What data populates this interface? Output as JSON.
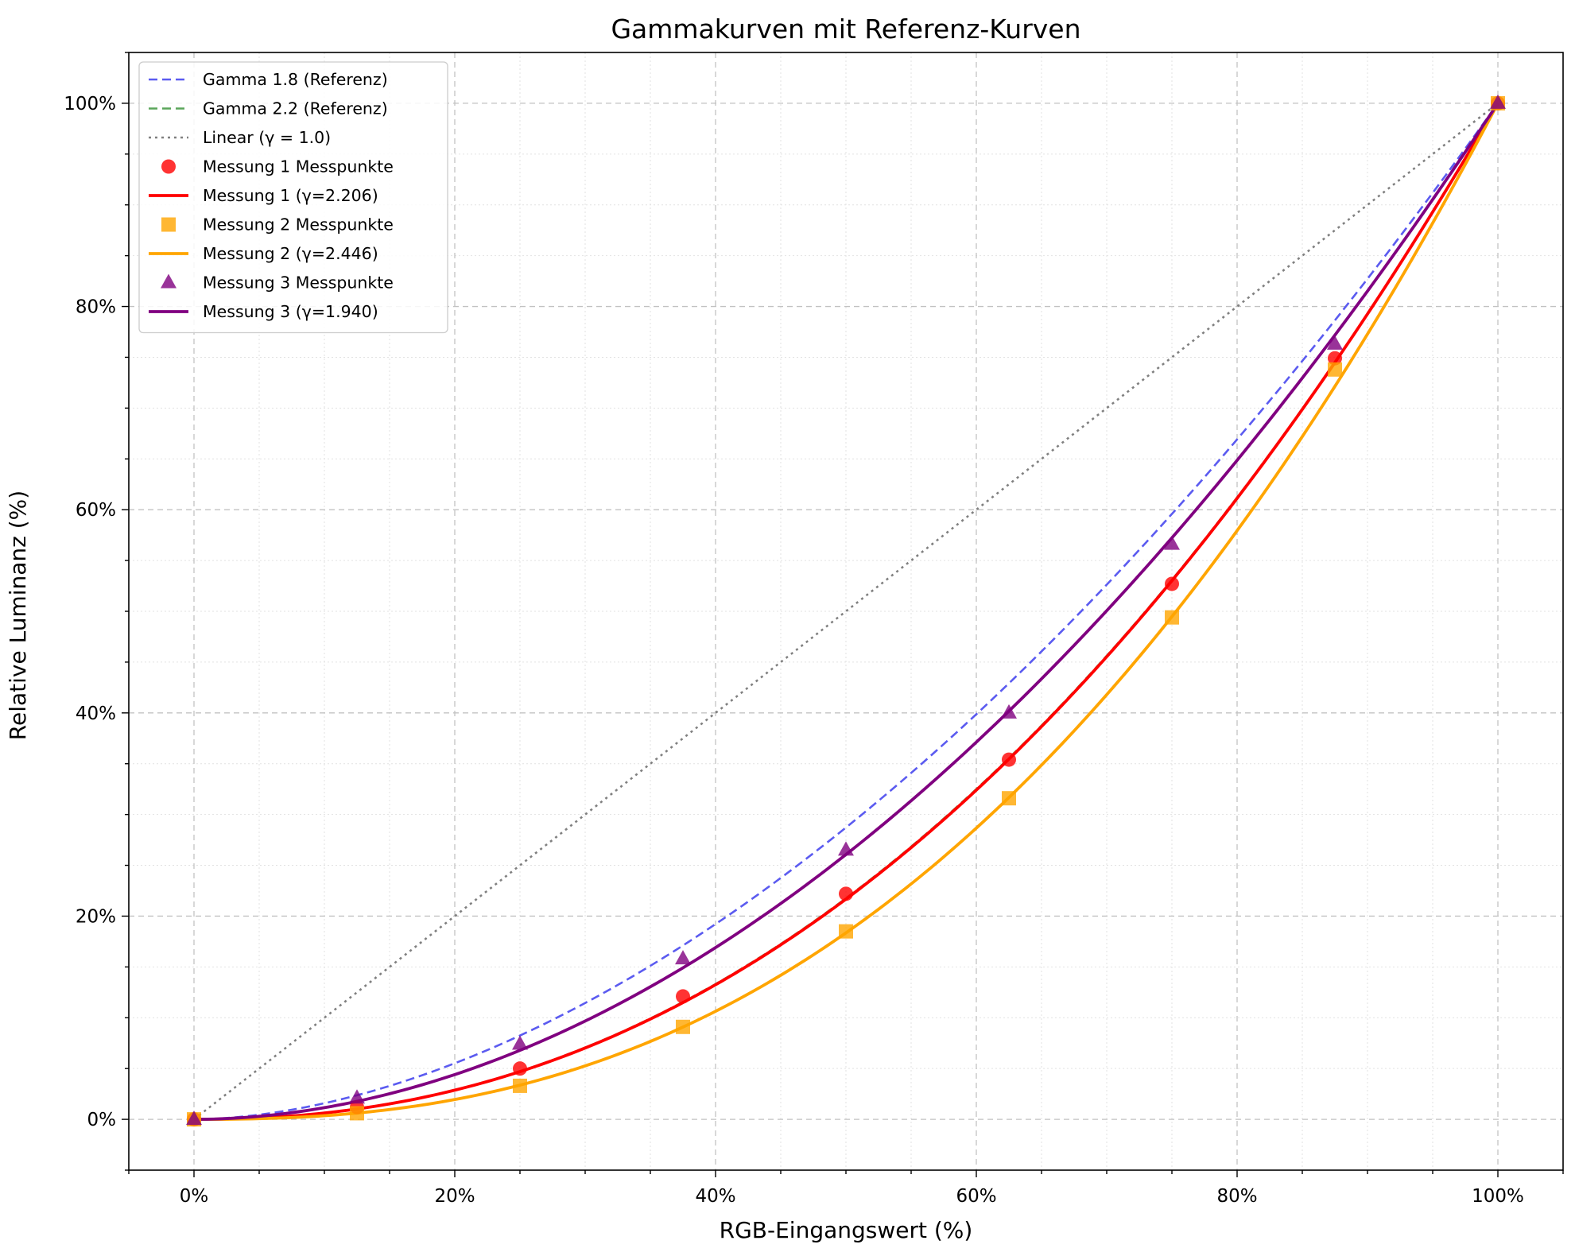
{
  "chart_data": {
    "type": "line",
    "title": "Gammakurven mit Referenz-Kurven",
    "xlabel": "RGB-Eingangswert (%)",
    "ylabel": "Relative Luminanz (%)",
    "xlim": [
      -5,
      105
    ],
    "ylim": [
      -5,
      105
    ],
    "x_ticks": [
      0,
      20,
      40,
      60,
      80,
      100
    ],
    "x_tick_labels": [
      "0%",
      "20%",
      "40%",
      "60%",
      "80%",
      "100%"
    ],
    "y_ticks": [
      0,
      20,
      40,
      60,
      80,
      100
    ],
    "y_tick_labels": [
      "0%",
      "20%",
      "40%",
      "60%",
      "80%",
      "100%"
    ],
    "grid": true,
    "minor_grid": true,
    "legend_position": "top-left",
    "reference_curves": [
      {
        "name": "Gamma 1.8 (Referenz)",
        "gamma": 1.8,
        "color": "#5b5bf0",
        "style": "dashed"
      },
      {
        "name": "Gamma 2.2 (Referenz)",
        "gamma": 2.2,
        "color": "#5aa55a",
        "style": "dashed"
      },
      {
        "name": "Linear (γ = 1.0)",
        "gamma": 1.0,
        "color": "#808080",
        "style": "dotted"
      }
    ],
    "measurements": [
      {
        "points_name": "Messung 1 Messpunkte",
        "fit_name": "Messung 1 (γ=2.206)",
        "gamma": 2.206,
        "color": "#ff0000",
        "marker": "circle",
        "x": [
          0,
          12.5,
          25,
          37.5,
          50,
          62.5,
          75,
          87.5,
          100
        ],
        "y": [
          0,
          1.2,
          5.0,
          12.1,
          22.2,
          35.4,
          52.7,
          74.9,
          100
        ]
      },
      {
        "points_name": "Messung 2 Messpunkte",
        "fit_name": "Messung 2 (γ=2.446)",
        "gamma": 2.446,
        "color": "#ffa500",
        "marker": "square",
        "x": [
          0,
          12.5,
          25,
          37.5,
          50,
          62.5,
          75,
          87.5,
          100
        ],
        "y": [
          0,
          0.6,
          3.3,
          9.1,
          18.5,
          31.6,
          49.4,
          73.8,
          100
        ]
      },
      {
        "points_name": "Messung 3 Messpunkte",
        "fit_name": "Messung 3 (γ=1.940)",
        "gamma": 1.94,
        "color": "#800080",
        "marker": "triangle",
        "x": [
          0,
          12.5,
          25,
          37.5,
          50,
          62.5,
          75,
          87.5,
          100
        ],
        "y": [
          0,
          2.1,
          7.4,
          15.8,
          26.5,
          40.0,
          56.6,
          76.3,
          100
        ]
      }
    ]
  }
}
